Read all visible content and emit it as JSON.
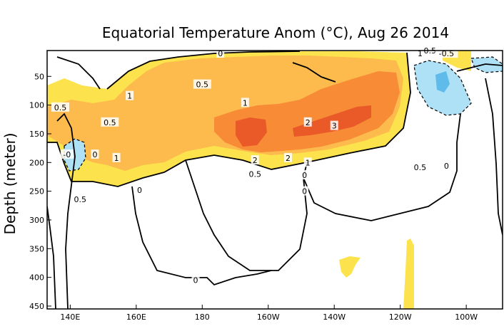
{
  "chart_data": {
    "type": "heatmap",
    "title": "Equatorial Temperature Anom (°C), Aug 26 2014",
    "xlabel": "",
    "ylabel": "Depth (meter)",
    "x_ticks": [
      "140E",
      "160E",
      "180",
      "160W",
      "140W",
      "120W",
      "100W"
    ],
    "x_tick_lon": [
      140,
      160,
      180,
      200,
      220,
      240,
      260
    ],
    "xlim_lon": [
      133,
      271
    ],
    "y_ticks": [
      50,
      100,
      150,
      200,
      250,
      300,
      350,
      400,
      450
    ],
    "ylim": [
      5,
      455
    ],
    "colors": {
      "band_0_5": "#fce34d",
      "band_1": "#fcbb4c",
      "band_2": "#f78b36",
      "band_3": "#e95a28",
      "neg_light": "#aee0f6",
      "neg_mid": "#5fbbe9",
      "contour": "#000000"
    },
    "contour_labels": [
      {
        "text": "0",
        "lon": 185.5,
        "depth": 10
      },
      {
        "text": "0.5",
        "lon": 249,
        "depth": 5
      },
      {
        "text": "1",
        "lon": 246,
        "depth": 10
      },
      {
        "text": "0.5",
        "lon": 180,
        "depth": 64
      },
      {
        "text": "1",
        "lon": 158,
        "depth": 84
      },
      {
        "text": "1",
        "lon": 193,
        "depth": 96
      },
      {
        "text": "0.5",
        "lon": 137,
        "depth": 104
      },
      {
        "text": "0.5",
        "lon": 152,
        "depth": 130
      },
      {
        "text": "2",
        "lon": 212,
        "depth": 130
      },
      {
        "text": "3",
        "lon": 220,
        "depth": 136
      },
      {
        "text": "-0",
        "lon": 139,
        "depth": 186
      },
      {
        "text": "1",
        "lon": 154,
        "depth": 192
      },
      {
        "text": "2",
        "lon": 196,
        "depth": 196
      },
      {
        "text": "2",
        "lon": 206,
        "depth": 192
      },
      {
        "text": "1",
        "lon": 212,
        "depth": 200
      },
      {
        "text": "0.5",
        "lon": 246,
        "depth": 208
      },
      {
        "text": "0.5",
        "lon": 196,
        "depth": 220
      },
      {
        "text": "0",
        "lon": 211,
        "depth": 222
      },
      {
        "text": "0",
        "lon": 254,
        "depth": 206
      },
      {
        "text": "0",
        "lon": 161,
        "depth": 248
      },
      {
        "text": "0",
        "lon": 211,
        "depth": 250
      },
      {
        "text": "0.5",
        "lon": 143,
        "depth": 264
      },
      {
        "text": "0",
        "lon": 178,
        "depth": 405
      },
      {
        "text": "-0.5",
        "lon": 254,
        "depth": 10
      },
      {
        "text": "0",
        "lon": 147.5,
        "depth": 186
      }
    ]
  }
}
